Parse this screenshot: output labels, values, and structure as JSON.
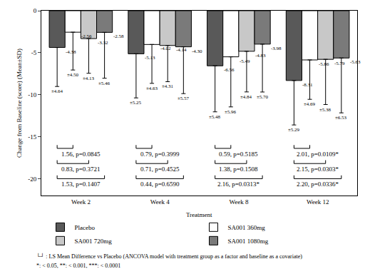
{
  "chart_data": {
    "type": "bar",
    "y_label": "Change from Baseline (score) (Mean±SD)",
    "categories": [
      "Week 2",
      "Week 4",
      "Week 8",
      "Week 12"
    ],
    "legend_title": "Treatment",
    "legend": "bottom",
    "grid": false,
    "data_labels": true,
    "ylim": [
      -22,
      0
    ],
    "yticks": [
      0,
      -5,
      -10,
      -15,
      -20
    ],
    "series": [
      {
        "name": "Placebo",
        "color": "#595959",
        "values": [
          -4.38,
          -5.13,
          -6.56,
          -8.31
        ],
        "value_labels": [
          "-4.38",
          "-5.13",
          "-6.56",
          "-8.31"
        ],
        "errors": [
          4.64,
          5.25,
          5.48,
          5.29
        ],
        "error_labels": [
          "±4.64",
          "±5.25",
          "±5.48",
          "±5.29"
        ]
      },
      {
        "name": "SA001 360mg",
        "color": "#ffffff",
        "values": [
          -2.56,
          -4.02,
          -5.49,
          -5.86
        ],
        "value_labels": [
          "-2.56",
          "-4.02",
          "-5.49",
          "-5.86"
        ],
        "errors": [
          4.5,
          4.63,
          5.96,
          4.69
        ],
        "error_labels": [
          "±4.50",
          "±4.63",
          "±5.96",
          "±4.69"
        ]
      },
      {
        "name": "SA001 720mg",
        "color": "#c8c8c8",
        "values": [
          -3.32,
          -4.14,
          -4.83,
          -5.79
        ],
        "value_labels": [
          "-3.32",
          "-4.14",
          "-4.83",
          "-5.79"
        ],
        "errors": [
          4.13,
          4.31,
          4.84,
          5.38
        ],
        "error_labels": [
          "±4.13",
          "±4.31",
          "±4.84",
          "±5.38"
        ]
      },
      {
        "name": "SA001 1080mg",
        "color": "#7a7a7a",
        "values": [
          -2.58,
          -4.3,
          -3.98,
          -5.63
        ],
        "value_labels": [
          "-2.58",
          "-4.30",
          "-3.98",
          "-5.63"
        ],
        "errors": [
          5.46,
          5.57,
          5.7,
          6.53
        ],
        "error_labels": [
          "±5.46",
          "±5.57",
          "±5.70",
          "±6.53"
        ]
      }
    ],
    "comparisons": [
      {
        "series": "SA001 360mg",
        "labels": [
          "1.56, p=0.0845",
          "0.79, p=0.3999",
          "0.59, p=0.5185",
          "2.01, p=0.0109*"
        ]
      },
      {
        "series": "SA001 720mg",
        "labels": [
          "0.83, p=0.3721",
          "0.71, p=0.4525",
          "1.38, p=0.1508",
          "2.15, p=0.0303*"
        ]
      },
      {
        "series": "SA001 1080mg",
        "labels": [
          "1.53, p=0.1407",
          "0.44, p=0.6590",
          "2.16, p=0.0313*",
          "2.20, p=0.0336*"
        ]
      }
    ],
    "footnotes": [
      "└┘ : LS Mean Difference vs Placebo (ANCOVA model with treatment group as a factor and baseline as a covariate)",
      "*: < 0.05, **: < 0.001, ***: < 0.0001"
    ]
  }
}
